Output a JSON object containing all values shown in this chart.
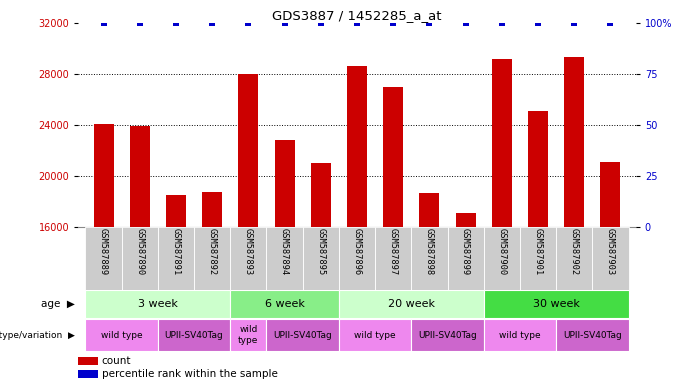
{
  "title": "GDS3887 / 1452285_a_at",
  "samples": [
    "GSM587889",
    "GSM587890",
    "GSM587891",
    "GSM587892",
    "GSM587893",
    "GSM587894",
    "GSM587895",
    "GSM587896",
    "GSM587897",
    "GSM587898",
    "GSM587899",
    "GSM587900",
    "GSM587901",
    "GSM587902",
    "GSM587903"
  ],
  "counts": [
    24100,
    23900,
    18500,
    18700,
    28000,
    22800,
    21000,
    28600,
    27000,
    18600,
    17100,
    29200,
    25100,
    29300,
    21100
  ],
  "percentile": [
    100,
    100,
    100,
    100,
    100,
    100,
    100,
    100,
    100,
    100,
    100,
    100,
    100,
    100,
    100
  ],
  "bar_color": "#cc0000",
  "percentile_color": "#0000cc",
  "ylim_left": [
    16000,
    32000
  ],
  "yticks_left": [
    16000,
    20000,
    24000,
    28000,
    32000
  ],
  "ylim_right": [
    0,
    100
  ],
  "yticks_right": [
    0,
    25,
    50,
    75,
    100
  ],
  "yticklabels_right": [
    "0",
    "25",
    "50",
    "75",
    "100%"
  ],
  "left_tick_color": "#cc0000",
  "right_tick_color": "#0000cc",
  "age_groups": [
    {
      "label": "3 week",
      "start": 0,
      "end": 4,
      "color": "#ccffcc"
    },
    {
      "label": "6 week",
      "start": 4,
      "end": 7,
      "color": "#88ee88"
    },
    {
      "label": "20 week",
      "start": 7,
      "end": 11,
      "color": "#ccffcc"
    },
    {
      "label": "30 week",
      "start": 11,
      "end": 15,
      "color": "#44dd44"
    }
  ],
  "genotype_groups": [
    {
      "label": "wild type",
      "start": 0,
      "end": 2,
      "color": "#ee88ee"
    },
    {
      "label": "UPII-SV40Tag",
      "start": 2,
      "end": 4,
      "color": "#cc66cc"
    },
    {
      "label": "wild\ntype",
      "start": 4,
      "end": 5,
      "color": "#ee88ee"
    },
    {
      "label": "UPII-SV40Tag",
      "start": 5,
      "end": 7,
      "color": "#cc66cc"
    },
    {
      "label": "wild type",
      "start": 7,
      "end": 9,
      "color": "#ee88ee"
    },
    {
      "label": "UPII-SV40Tag",
      "start": 9,
      "end": 11,
      "color": "#cc66cc"
    },
    {
      "label": "wild type",
      "start": 11,
      "end": 13,
      "color": "#ee88ee"
    },
    {
      "label": "UPII-SV40Tag",
      "start": 13,
      "end": 15,
      "color": "#cc66cc"
    }
  ],
  "legend_count_color": "#cc0000",
  "legend_percentile_color": "#0000cc",
  "background_color": "#ffffff",
  "label_bg_color": "#cccccc"
}
